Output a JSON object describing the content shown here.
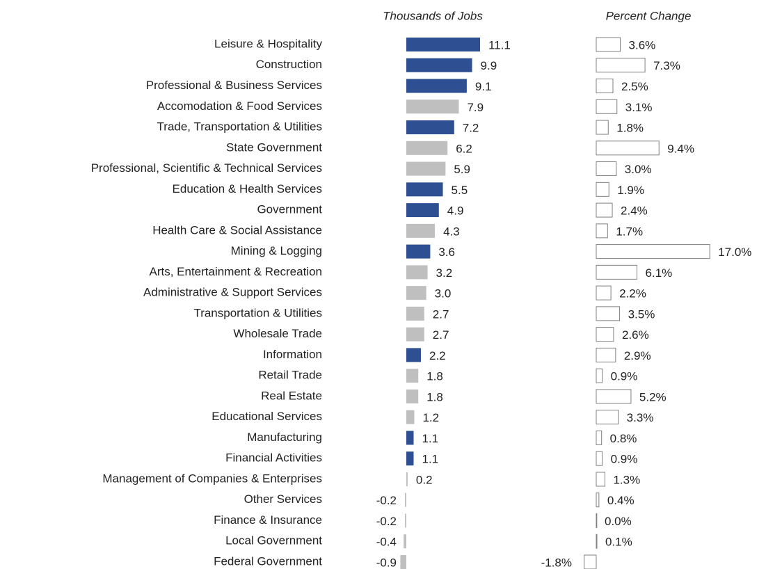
{
  "chart_data": [
    {
      "type": "bar",
      "title": "Thousands of Jobs",
      "categories": [
        "Leisure & Hospitality",
        "Construction",
        "Professional & Business Services",
        "Accomodation & Food Services",
        "Trade, Transportation & Utilities",
        "State Government",
        "Professional, Scientific & Technical Services",
        "Education & Health Services",
        "Government",
        "Health Care & Social Assistance",
        "Mining & Logging",
        "Arts, Entertainment & Recreation",
        "Administrative & Support Services",
        "Transportation & Utilities",
        "Wholesale Trade",
        "Information",
        "Retail Trade",
        "Real Estate",
        "Educational Services",
        "Manufacturing",
        "Financial Activities",
        "Management of Companies & Enterprises",
        "Other Services",
        "Finance & Insurance",
        "Local Government",
        "Federal Government"
      ],
      "values": [
        11.1,
        9.9,
        9.1,
        7.9,
        7.2,
        6.2,
        5.9,
        5.5,
        4.9,
        4.3,
        3.6,
        3.2,
        3.0,
        2.7,
        2.7,
        2.2,
        1.8,
        1.8,
        1.2,
        1.1,
        1.1,
        0.2,
        -0.2,
        -0.2,
        -0.4,
        -0.9
      ],
      "value_labels": [
        "11.1",
        "9.9",
        "9.1",
        "7.9",
        "7.2",
        "6.2",
        "5.9",
        "5.5",
        "4.9",
        "4.3",
        "3.6",
        "3.2",
        "3.0",
        "2.7",
        "2.7",
        "2.2",
        "1.8",
        "1.8",
        "1.2",
        "1.1",
        "1.1",
        "0.2",
        "-0.2",
        "-0.2",
        "-0.4",
        "-0.9"
      ],
      "colors": [
        "#2e4f91",
        "#2e4f91",
        "#2e4f91",
        "#bfbfbf",
        "#2e4f91",
        "#bfbfbf",
        "#bfbfbf",
        "#2e4f91",
        "#2e4f91",
        "#bfbfbf",
        "#2e4f91",
        "#bfbfbf",
        "#bfbfbf",
        "#bfbfbf",
        "#bfbfbf",
        "#2e4f91",
        "#bfbfbf",
        "#bfbfbf",
        "#bfbfbf",
        "#2e4f91",
        "#2e4f91",
        "#bfbfbf",
        "#bfbfbf",
        "#bfbfbf",
        "#bfbfbf",
        "#bfbfbf"
      ]
    },
    {
      "type": "bar",
      "title": "Percent Change",
      "values": [
        3.6,
        7.3,
        2.5,
        3.1,
        1.8,
        9.4,
        3.0,
        1.9,
        2.4,
        1.7,
        17.0,
        6.1,
        2.2,
        3.5,
        2.6,
        2.9,
        0.9,
        5.2,
        3.3,
        0.8,
        0.9,
        1.3,
        0.4,
        0.0,
        0.1,
        -1.8
      ],
      "value_labels": [
        "3.6%",
        "7.3%",
        "2.5%",
        "3.1%",
        "1.8%",
        "9.4%",
        "3.0%",
        "1.9%",
        "2.4%",
        "1.7%",
        "17.0%",
        "6.1%",
        "2.2%",
        "3.5%",
        "2.6%",
        "2.9%",
        "0.9%",
        "5.2%",
        "3.3%",
        "0.8%",
        "0.9%",
        "1.3%",
        "0.4%",
        "0.0%",
        "0.1%",
        "-1.8%"
      ],
      "color": "#ffffff"
    }
  ]
}
